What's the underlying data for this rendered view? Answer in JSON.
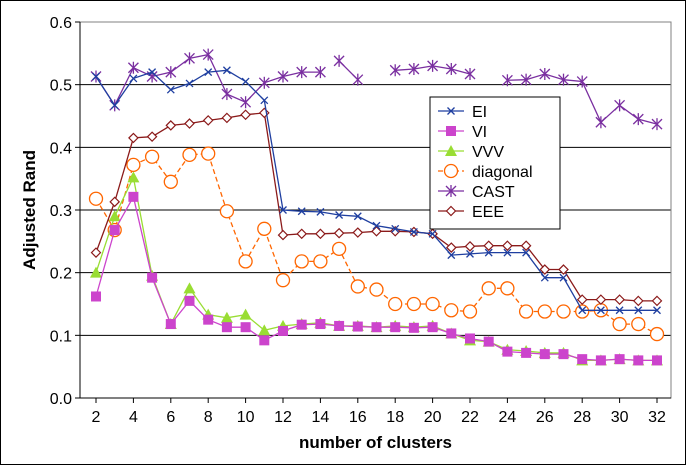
{
  "chart_data": {
    "type": "line",
    "title": "",
    "xlabel": "number of clusters",
    "ylabel": "Adjusted Rand",
    "xlim": [
      2,
      32
    ],
    "ylim": [
      0,
      0.6
    ],
    "x_ticks": [
      2,
      4,
      6,
      8,
      10,
      12,
      14,
      16,
      18,
      20,
      22,
      24,
      26,
      28,
      30,
      32
    ],
    "y_ticks": [
      "0.0",
      "0.1",
      "0.2",
      "0.3",
      "0.4",
      "0.5",
      "0.6"
    ],
    "grid": "horizontal",
    "legend_position": "right",
    "series": [
      {
        "name": "EI",
        "color": "#1f3fa0",
        "marker": "x",
        "dashed": false,
        "x": [
          2,
          3,
          4,
          5,
          6,
          7,
          8,
          9,
          10,
          11,
          12,
          13,
          14,
          15,
          16,
          17,
          18,
          19,
          20,
          21,
          22,
          23,
          24,
          25,
          26,
          27,
          28,
          29,
          30,
          31,
          32
        ],
        "values": [
          0.513,
          0.467,
          0.51,
          0.52,
          0.492,
          0.502,
          0.52,
          0.523,
          0.505,
          0.475,
          0.3,
          0.298,
          0.297,
          0.292,
          0.29,
          0.275,
          0.27,
          0.265,
          0.262,
          0.228,
          0.23,
          0.232,
          0.232,
          0.232,
          0.192,
          0.192,
          0.14,
          0.14,
          0.14,
          0.14,
          0.14
        ]
      },
      {
        "name": "VI",
        "color": "#cc44cc",
        "marker": "square",
        "dashed": false,
        "x": [
          2,
          3,
          4,
          5,
          6,
          7,
          8,
          9,
          10,
          11,
          12,
          13,
          14,
          15,
          16,
          17,
          18,
          19,
          20,
          21,
          22,
          23,
          24,
          25,
          26,
          27,
          28,
          29,
          30,
          31,
          32
        ],
        "values": [
          0.162,
          0.268,
          0.321,
          0.192,
          0.118,
          0.155,
          0.125,
          0.113,
          0.113,
          0.092,
          0.107,
          0.117,
          0.118,
          0.115,
          0.114,
          0.113,
          0.113,
          0.112,
          0.113,
          0.103,
          0.095,
          0.09,
          0.074,
          0.072,
          0.07,
          0.07,
          0.062,
          0.06,
          0.062,
          0.06,
          0.06
        ]
      },
      {
        "name": "VVV",
        "color": "#99dd33",
        "marker": "triangle",
        "dashed": false,
        "x": [
          2,
          3,
          4,
          5,
          6,
          7,
          8,
          9,
          10,
          11,
          12,
          13,
          14,
          15,
          16,
          17,
          18,
          19,
          20,
          21,
          22,
          23,
          24,
          25,
          26,
          27,
          28,
          29,
          30,
          31,
          32
        ],
        "values": [
          0.2,
          0.29,
          0.352,
          0.195,
          0.118,
          0.175,
          0.133,
          0.128,
          0.133,
          0.108,
          0.115,
          0.118,
          0.12,
          0.115,
          0.115,
          0.113,
          0.115,
          0.113,
          0.115,
          0.103,
          0.092,
          0.09,
          0.077,
          0.075,
          0.072,
          0.072,
          0.06,
          0.06,
          0.062,
          0.06,
          0.06
        ]
      },
      {
        "name": "diagonal",
        "color": "#ff6600",
        "marker": "circle",
        "dashed": true,
        "x": [
          2,
          3,
          4,
          5,
          6,
          7,
          8,
          9,
          10,
          11,
          12,
          13,
          14,
          15,
          16,
          17,
          18,
          19,
          20,
          21,
          22,
          23,
          24,
          25,
          26,
          27,
          28,
          29,
          30,
          31,
          32
        ],
        "values": [
          0.318,
          0.268,
          0.372,
          0.385,
          0.345,
          0.388,
          0.39,
          0.298,
          0.218,
          0.27,
          0.188,
          0.218,
          0.218,
          0.238,
          0.178,
          0.173,
          0.15,
          0.15,
          0.15,
          0.14,
          0.138,
          0.175,
          0.175,
          0.138,
          0.138,
          0.138,
          0.138,
          0.14,
          0.118,
          0.118,
          0.102
        ]
      },
      {
        "name": "CAST",
        "color": "#7a2fa0",
        "marker": "star",
        "dashed": false,
        "x": [
          2,
          3,
          4,
          5,
          6,
          7,
          8,
          9,
          10,
          11,
          12,
          13,
          14,
          null,
          15,
          16,
          null,
          18,
          19,
          20,
          21,
          22,
          null,
          24,
          25,
          26,
          27,
          28,
          29,
          30,
          31,
          32
        ],
        "values": [
          0.513,
          0.467,
          0.527,
          0.513,
          0.52,
          0.542,
          0.548,
          0.485,
          0.472,
          0.503,
          0.513,
          0.52,
          0.52,
          null,
          0.538,
          0.508,
          null,
          0.523,
          0.525,
          0.53,
          0.525,
          0.517,
          null,
          0.507,
          0.508,
          0.517,
          0.508,
          0.505,
          0.44,
          0.467,
          0.445,
          0.437
        ]
      },
      {
        "name": "EEE",
        "color": "#8b1a1a",
        "marker": "diamond",
        "dashed": false,
        "x": [
          2,
          3,
          4,
          5,
          6,
          7,
          8,
          9,
          10,
          11,
          12,
          13,
          14,
          15,
          16,
          17,
          18,
          19,
          20,
          21,
          22,
          23,
          24,
          25,
          26,
          27,
          28,
          29,
          30,
          31,
          32
        ],
        "values": [
          0.232,
          0.313,
          0.415,
          0.417,
          0.435,
          0.438,
          0.443,
          0.447,
          0.452,
          0.455,
          0.26,
          0.262,
          0.262,
          0.263,
          0.264,
          0.266,
          0.266,
          0.265,
          0.262,
          0.24,
          0.242,
          0.243,
          0.243,
          0.243,
          0.205,
          0.205,
          0.157,
          0.157,
          0.157,
          0.155,
          0.155
        ]
      }
    ]
  }
}
